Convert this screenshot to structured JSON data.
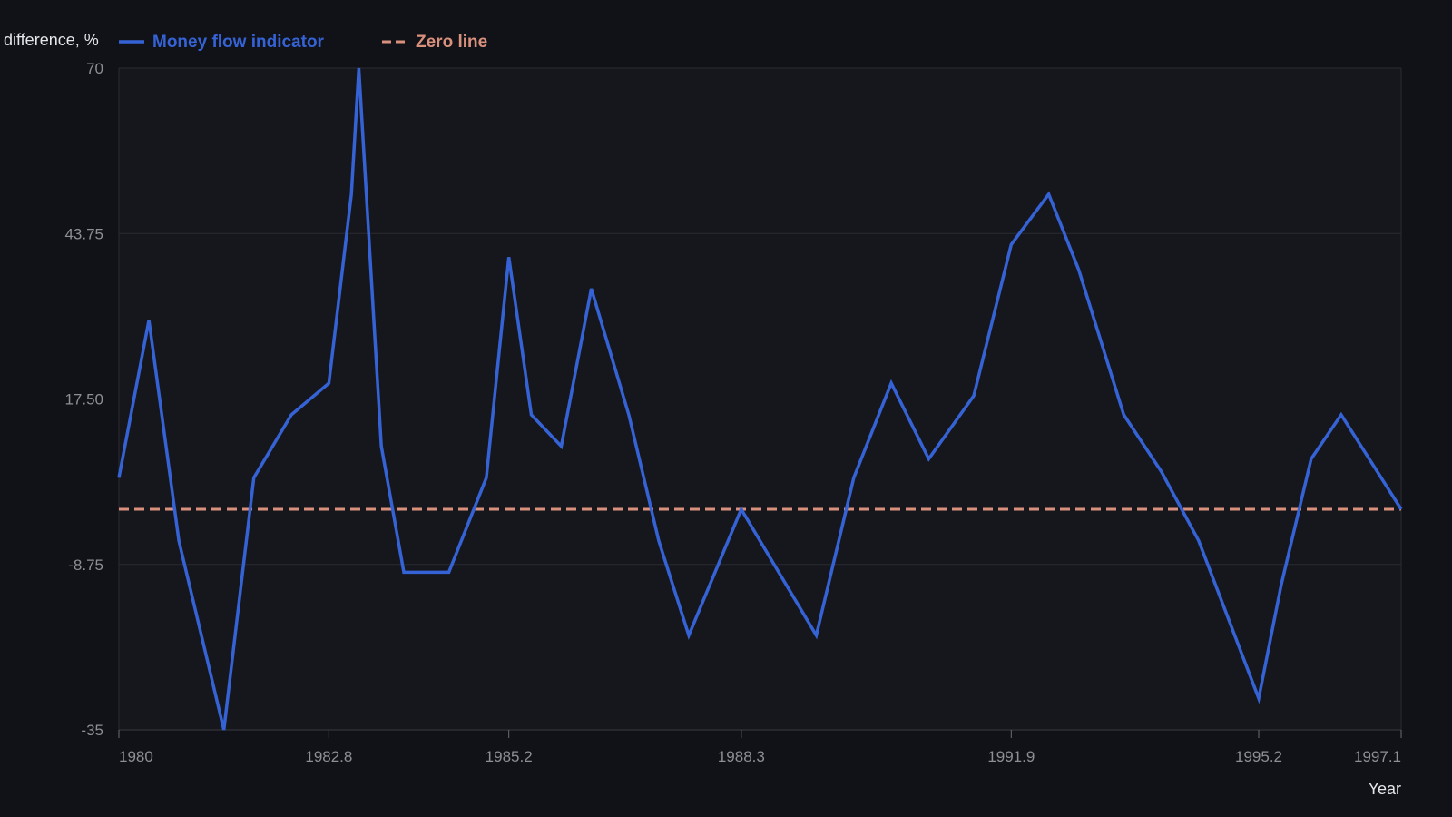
{
  "chart_data": {
    "type": "line",
    "ylabel": "difference, %",
    "xlabel": "Year",
    "ylim": [
      -35,
      70
    ],
    "xlim": [
      1980,
      1997.1
    ],
    "yticks": [
      "70",
      "43.75",
      "17.50",
      "-8.75",
      "-35"
    ],
    "ytick_values": [
      70,
      43.75,
      17.5,
      -8.75,
      -35
    ],
    "xticks": [
      "1980",
      "1982.8",
      "1985.2",
      "1988.3",
      "1991.9",
      "1995.2",
      "1997.1"
    ],
    "xtick_values": [
      1980,
      1982.8,
      1985.2,
      1988.3,
      1991.9,
      1995.2,
      1997.1
    ],
    "grid": true,
    "legend_position": "top-left",
    "series": [
      {
        "name": "Money flow indicator",
        "color": "#3563d6",
        "style": "solid",
        "x": [
          1980,
          1980.4,
          1980.8,
          1981.4,
          1981.8,
          1982.3,
          1982.8,
          1983.1,
          1983.2,
          1983.5,
          1983.8,
          1984.4,
          1984.9,
          1985.2,
          1985.5,
          1985.9,
          1986.3,
          1986.8,
          1987.2,
          1987.6,
          1988.3,
          1989.3,
          1989.8,
          1990.3,
          1990.8,
          1991.4,
          1991.9,
          1992.4,
          1992.8,
          1993.4,
          1993.9,
          1994.4,
          1995.2,
          1995.5,
          1995.9,
          1996.3,
          1997.1
        ],
        "y": [
          5,
          30,
          -5,
          -35,
          5,
          15,
          20,
          50,
          70,
          10,
          -10,
          -10,
          5,
          40,
          15,
          10,
          35,
          15,
          -5,
          -20,
          0,
          -20,
          5,
          20,
          8,
          18,
          42,
          50,
          38,
          15,
          6,
          -5,
          -30,
          -12,
          8,
          15,
          0
        ]
      },
      {
        "name": "Zero line",
        "color": "#d9907c",
        "style": "dashed",
        "x": [
          1980,
          1997.1
        ],
        "y": [
          0,
          0
        ]
      }
    ]
  }
}
